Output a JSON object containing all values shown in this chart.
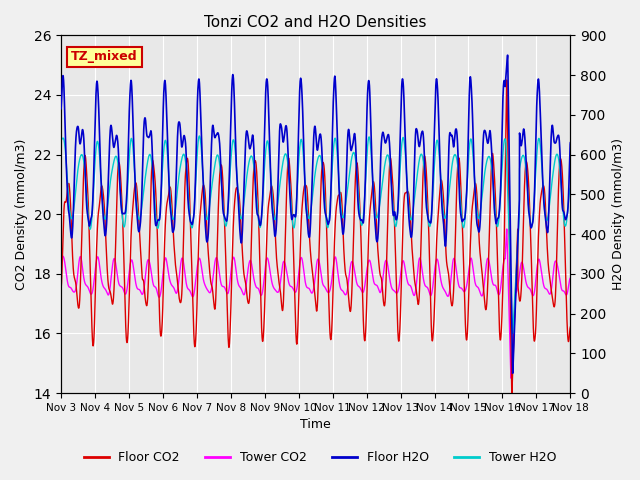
{
  "title": "Tonzi CO2 and H2O Densities",
  "xlabel": "Time",
  "ylabel_left": "CO2 Density (mmol/m3)",
  "ylabel_right": "H2O Density (mmol/m3)",
  "annotation_text": "TZ_mixed",
  "annotation_color": "#cc0000",
  "annotation_bg": "#ffff99",
  "annotation_border": "#cc0000",
  "ylim_left": [
    14,
    26
  ],
  "ylim_right": [
    0,
    900
  ],
  "yticks_left": [
    14,
    16,
    18,
    20,
    22,
    24,
    26
  ],
  "yticks_right": [
    0,
    100,
    200,
    300,
    400,
    500,
    600,
    700,
    800,
    900
  ],
  "xtick_labels": [
    "Nov 3",
    "Nov 4",
    "Nov 5",
    "Nov 6",
    "Nov 7",
    "Nov 8",
    "Nov 9",
    "Nov 10",
    "Nov 11",
    "Nov 12",
    "Nov 13",
    "Nov 14",
    "Nov 15",
    "Nov 16",
    "Nov 17",
    "Nov 18"
  ],
  "colors": {
    "floor_co2": "#dd0000",
    "tower_co2": "#ff00ff",
    "floor_h2o": "#0000cc",
    "tower_h2o": "#00cccc"
  },
  "legend_labels": [
    "Floor CO2",
    "Tower CO2",
    "Floor H2O",
    "Tower H2O"
  ],
  "bg_color": "#e8e8e8",
  "grid_color": "#ffffff",
  "n_days": 15,
  "n_points": 3000,
  "figsize": [
    6.4,
    4.8
  ],
  "dpi": 100
}
